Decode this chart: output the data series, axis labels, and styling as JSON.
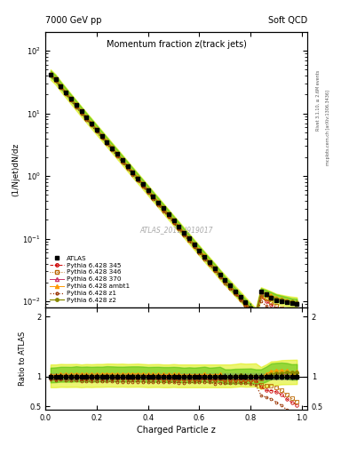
{
  "title": "Momentum fraction z(track jets)",
  "top_left_label": "7000 GeV pp",
  "top_right_label": "Soft QCD",
  "ylabel_main": "(1/Njet)dN/dz",
  "ylabel_ratio": "Ratio to ATLAS",
  "xlabel": "Charged Particle z",
  "watermark": "ATLAS_2011_I919017",
  "right_label_top": "Rivet 3.1.10, ≥ 2.6M events",
  "right_label_bottom": "mcplots.cern.ch [arXiv:1306.3436]",
  "z_pts": [
    0.02,
    0.04,
    0.06,
    0.08,
    0.1,
    0.12,
    0.14,
    0.16,
    0.18,
    0.2,
    0.22,
    0.24,
    0.26,
    0.28,
    0.3,
    0.32,
    0.34,
    0.36,
    0.38,
    0.4,
    0.42,
    0.44,
    0.46,
    0.48,
    0.5,
    0.52,
    0.54,
    0.56,
    0.58,
    0.6,
    0.62,
    0.64,
    0.66,
    0.68,
    0.7,
    0.72,
    0.74,
    0.76,
    0.78,
    0.8,
    0.82,
    0.84,
    0.86,
    0.88,
    0.9,
    0.92,
    0.94,
    0.96,
    0.98
  ],
  "atlas_vals": [
    42.0,
    35.0,
    27.0,
    21.5,
    17.0,
    13.5,
    10.8,
    8.6,
    6.9,
    5.5,
    4.4,
    3.5,
    2.8,
    2.25,
    1.8,
    1.44,
    1.15,
    0.92,
    0.74,
    0.595,
    0.475,
    0.38,
    0.305,
    0.244,
    0.195,
    0.157,
    0.126,
    0.101,
    0.081,
    0.065,
    0.052,
    0.042,
    0.034,
    0.027,
    0.022,
    0.018,
    0.0145,
    0.0118,
    0.0096,
    0.0078,
    0.0064,
    0.0145,
    0.013,
    0.0115,
    0.0105,
    0.01,
    0.0096,
    0.0093,
    0.0091
  ],
  "py345_vals": [
    41.0,
    34.0,
    26.5,
    21.0,
    16.6,
    13.2,
    10.5,
    8.35,
    6.7,
    5.35,
    4.27,
    3.41,
    2.72,
    2.18,
    1.74,
    1.39,
    1.11,
    0.89,
    0.71,
    0.57,
    0.455,
    0.364,
    0.291,
    0.233,
    0.186,
    0.149,
    0.12,
    0.096,
    0.077,
    0.062,
    0.05,
    0.04,
    0.032,
    0.026,
    0.021,
    0.017,
    0.0137,
    0.0111,
    0.009,
    0.0073,
    0.006,
    0.012,
    0.01,
    0.0088,
    0.0078,
    0.007,
    0.006,
    0.0053,
    0.0048
  ],
  "py346_vals": [
    41.5,
    34.5,
    26.8,
    21.3,
    16.8,
    13.4,
    10.65,
    8.48,
    6.8,
    5.42,
    4.33,
    3.46,
    2.76,
    2.21,
    1.77,
    1.41,
    1.13,
    0.905,
    0.724,
    0.579,
    0.463,
    0.37,
    0.296,
    0.237,
    0.19,
    0.152,
    0.122,
    0.097,
    0.078,
    0.063,
    0.051,
    0.041,
    0.033,
    0.026,
    0.021,
    0.017,
    0.0138,
    0.0112,
    0.0091,
    0.0074,
    0.006,
    0.0125,
    0.011,
    0.0097,
    0.0086,
    0.0077,
    0.0067,
    0.0059,
    0.0053
  ],
  "py370_vals": [
    42.5,
    35.5,
    27.5,
    21.9,
    17.3,
    13.8,
    11.0,
    8.75,
    7.0,
    5.6,
    4.48,
    3.58,
    2.86,
    2.29,
    1.84,
    1.47,
    1.18,
    0.942,
    0.754,
    0.604,
    0.483,
    0.387,
    0.309,
    0.248,
    0.198,
    0.159,
    0.127,
    0.102,
    0.082,
    0.066,
    0.053,
    0.042,
    0.034,
    0.027,
    0.022,
    0.018,
    0.0145,
    0.0118,
    0.0096,
    0.0078,
    0.0063,
    0.014,
    0.013,
    0.012,
    0.011,
    0.0104,
    0.0098,
    0.0093,
    0.009
  ],
  "pyambt1_vals": [
    43.0,
    36.0,
    28.0,
    22.3,
    17.6,
    14.1,
    11.2,
    8.95,
    7.15,
    5.72,
    4.57,
    3.66,
    2.92,
    2.34,
    1.87,
    1.5,
    1.2,
    0.96,
    0.77,
    0.615,
    0.492,
    0.394,
    0.315,
    0.252,
    0.202,
    0.162,
    0.129,
    0.104,
    0.083,
    0.067,
    0.054,
    0.043,
    0.035,
    0.028,
    0.022,
    0.018,
    0.0146,
    0.0119,
    0.0097,
    0.0079,
    0.0064,
    0.0145,
    0.0135,
    0.0125,
    0.0115,
    0.011,
    0.0105,
    0.01,
    0.0098
  ],
  "pyz1_vals": [
    40.0,
    33.0,
    25.5,
    20.2,
    15.9,
    12.6,
    10.0,
    7.95,
    6.35,
    5.06,
    4.04,
    3.22,
    2.57,
    2.05,
    1.64,
    1.31,
    1.05,
    0.84,
    0.672,
    0.537,
    0.43,
    0.344,
    0.275,
    0.22,
    0.176,
    0.141,
    0.113,
    0.091,
    0.073,
    0.059,
    0.047,
    0.038,
    0.03,
    0.024,
    0.0195,
    0.016,
    0.013,
    0.0105,
    0.0085,
    0.0068,
    0.0055,
    0.01,
    0.0085,
    0.0072,
    0.006,
    0.0052,
    0.0043,
    0.0037,
    0.0033
  ],
  "pyz2_vals": [
    42.0,
    35.0,
    27.2,
    21.6,
    17.1,
    13.6,
    10.8,
    8.65,
    6.92,
    5.54,
    4.43,
    3.54,
    2.83,
    2.27,
    1.82,
    1.45,
    1.16,
    0.93,
    0.745,
    0.596,
    0.477,
    0.382,
    0.305,
    0.244,
    0.196,
    0.157,
    0.126,
    0.101,
    0.081,
    0.065,
    0.052,
    0.042,
    0.034,
    0.027,
    0.022,
    0.018,
    0.0146,
    0.012,
    0.0097,
    0.0079,
    0.0065,
    0.014,
    0.013,
    0.012,
    0.011,
    0.0106,
    0.0102,
    0.0099,
    0.0097
  ],
  "color_345": "#cc0000",
  "color_346": "#bb6600",
  "color_370": "#cc3366",
  "color_ambt1": "#ff9900",
  "color_z1": "#993300",
  "color_z2": "#888800",
  "ylim_main": [
    0.008,
    200
  ],
  "ylim_ratio": [
    0.45,
    2.15
  ],
  "xlim": [
    0.0,
    1.02
  ]
}
